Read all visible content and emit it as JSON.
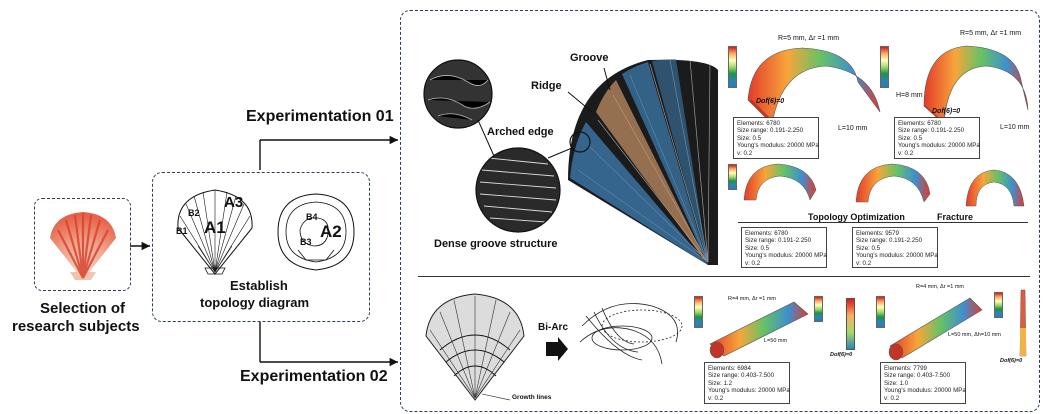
{
  "left": {
    "selection_line1": "Selection of",
    "selection_line2": "research subjects"
  },
  "topology": {
    "labels": {
      "a1": "A1",
      "a2": "A2",
      "a3": "A3",
      "b1": "B1",
      "b2": "B2",
      "b3": "B3",
      "b4": "B4"
    },
    "caption_line1": "Establish",
    "caption_line2": "topology diagram"
  },
  "experiments": {
    "exp1": "Experimentation 01",
    "exp2": "Experimentation 02"
  },
  "shell_photo": {
    "groove": "Groove",
    "ridge": "Ridge",
    "arched_edge": "Arched edge",
    "dense": "Dense groove structure"
  },
  "fea_top": {
    "model1": {
      "dims": "R=5 mm, Δr =1 mm",
      "dof": "Dof(6)=0",
      "length": "L=10 mm"
    },
    "model2": {
      "dims": "R=5 mm, Δr =1 mm",
      "height": "H=8 mm",
      "dof": "Dof(6)=0",
      "length": "L=10 mm"
    },
    "box1": [
      "Elements: 6780",
      "Size range: 0.191-2.250",
      "Size: 0.5",
      "Young's modulus: 20000 MPa",
      "v: 0.2"
    ],
    "box2": [
      "Elements: 6780",
      "Size range: 0.191-2.250",
      "Size: 0.5",
      "Young's modulus: 20000 MPa",
      "v: 0.2"
    ],
    "topology_optimization": "Topology Optimization",
    "fracture": "Fracture",
    "box3": [
      "Elements: 6780",
      "Size range: 0.191-2.250",
      "Size: 0.5",
      "Young's modulus: 20000 MPa",
      "v: 0.2"
    ],
    "box4": [
      "Elements: 9579",
      "Size range: 0.191-2.250",
      "Size: 0.5",
      "Young's modulus: 20000 MPa",
      "v: 0.2"
    ]
  },
  "fea_bottom": {
    "bi_arc": "Bi-Arc",
    "growth_lines": "Growth lines",
    "model3": {
      "dims": "R=4 mm, Δr =1 mm",
      "length": "L=50 mm",
      "dof": "Dof(6)=0"
    },
    "model4": {
      "dims": "R=4 mm, Δr =1 mm",
      "length": "L=50 mm, Δh=10 mm",
      "dof": "Dof(6)=0"
    },
    "box5": [
      "Elements: 6984",
      "Size range: 0.403-7.500",
      "Size: 1.2",
      "Young's modulus: 20000 MPa",
      "v: 0.2"
    ],
    "box6": [
      "Elements: 7799",
      "Size range: 0.403-7.500",
      "Size: 1.0",
      "Young's modulus: 20000 MPa",
      "v: 0.2"
    ]
  }
}
